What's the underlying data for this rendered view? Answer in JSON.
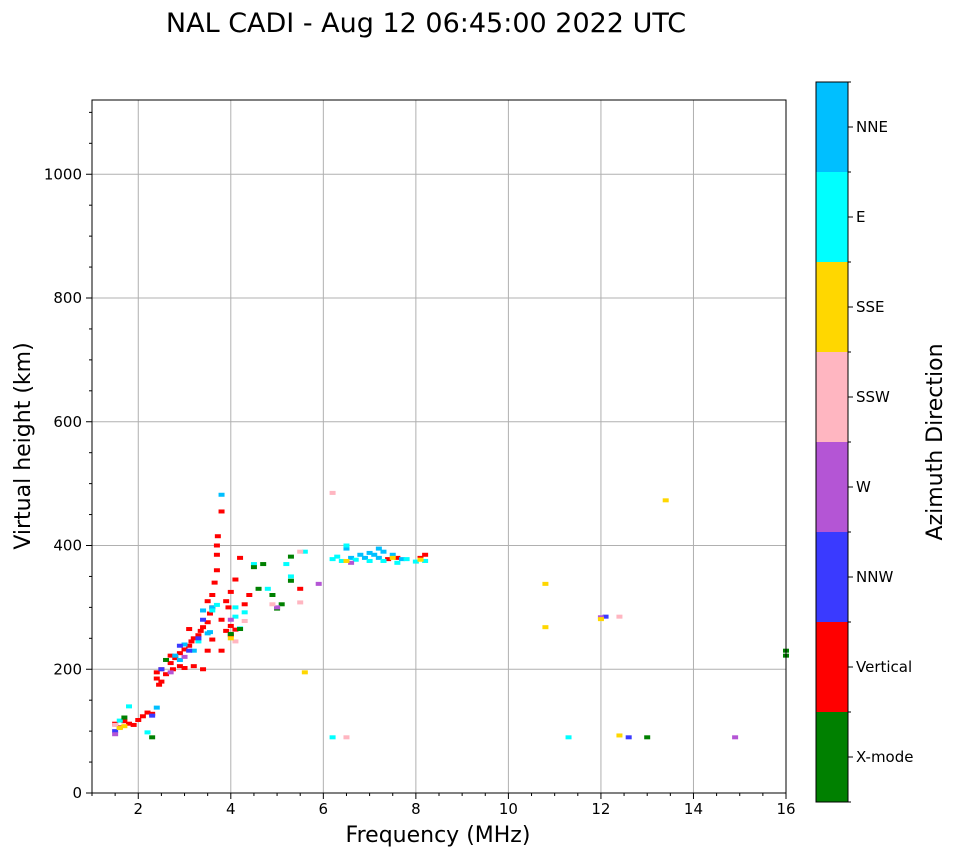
{
  "chart_data": {
    "type": "scatter",
    "title": "NAL CADI - Aug 12 06:45:00 2022 UTC",
    "xlabel": "Frequency (MHz)",
    "ylabel": "Virtual height (km)",
    "xlim": [
      1,
      16
    ],
    "ylim": [
      0,
      1120
    ],
    "xticks": [
      2,
      4,
      6,
      8,
      10,
      12,
      14,
      16
    ],
    "yticks": [
      0,
      200,
      400,
      600,
      800,
      1000
    ],
    "xtick_labels": [
      "2",
      "4",
      "6",
      "8",
      "10",
      "12",
      "14",
      "16"
    ],
    "ytick_labels": [
      "0",
      "200",
      "400",
      "600",
      "800",
      "1000"
    ],
    "grid": true,
    "colorbar": {
      "label": "Azimuth Direction",
      "categories": [
        {
          "name": "X-mode",
          "color": "#008000"
        },
        {
          "name": "Vertical",
          "color": "#ff0000"
        },
        {
          "name": "NNW",
          "color": "#3a3aff"
        },
        {
          "name": "W",
          "color": "#b455d5"
        },
        {
          "name": "SSW",
          "color": "#ffb6c1"
        },
        {
          "name": "SSE",
          "color": "#ffd700"
        },
        {
          "name": "E",
          "color": "#00ffff"
        },
        {
          "name": "NNE",
          "color": "#00bfff"
        }
      ]
    },
    "series": [
      {
        "name": "Vertical",
        "color": "#ff0000",
        "points": [
          [
            1.5,
            112
          ],
          [
            1.6,
            106
          ],
          [
            1.7,
            116
          ],
          [
            1.8,
            112
          ],
          [
            1.9,
            110
          ],
          [
            2.0,
            118
          ],
          [
            2.1,
            124
          ],
          [
            2.2,
            130
          ],
          [
            2.3,
            128
          ],
          [
            2.4,
            185
          ],
          [
            2.4,
            195
          ],
          [
            2.45,
            175
          ],
          [
            2.5,
            200
          ],
          [
            2.5,
            180
          ],
          [
            2.6,
            192
          ],
          [
            2.7,
            210
          ],
          [
            2.7,
            222
          ],
          [
            2.75,
            200
          ],
          [
            2.8,
            218
          ],
          [
            2.9,
            226
          ],
          [
            3.0,
            232
          ],
          [
            3.1,
            238
          ],
          [
            3.15,
            245
          ],
          [
            3.2,
            250
          ],
          [
            3.3,
            255
          ],
          [
            3.35,
            262
          ],
          [
            3.4,
            268
          ],
          [
            3.5,
            276
          ],
          [
            3.5,
            230
          ],
          [
            3.55,
            290
          ],
          [
            3.6,
            300
          ],
          [
            3.6,
            320
          ],
          [
            3.65,
            340
          ],
          [
            3.7,
            360
          ],
          [
            3.7,
            385
          ],
          [
            3.7,
            400
          ],
          [
            3.72,
            415
          ],
          [
            3.8,
            455
          ],
          [
            3.8,
            280
          ],
          [
            3.9,
            310
          ],
          [
            3.95,
            300
          ],
          [
            4.0,
            325
          ],
          [
            4.0,
            270
          ],
          [
            4.1,
            345
          ],
          [
            4.2,
            380
          ],
          [
            3.4,
            200
          ],
          [
            3.2,
            205
          ],
          [
            3.0,
            202
          ],
          [
            3.8,
            230
          ],
          [
            3.6,
            248
          ],
          [
            3.9,
            262
          ],
          [
            4.0,
            255
          ],
          [
            4.1,
            264
          ],
          [
            4.3,
            305
          ],
          [
            4.4,
            320
          ],
          [
            5.5,
            330
          ],
          [
            8.1,
            380
          ],
          [
            8.2,
            385
          ],
          [
            7.6,
            380
          ],
          [
            7.4,
            378
          ],
          [
            3.1,
            265
          ],
          [
            3.5,
            310
          ],
          [
            2.9,
            205
          ]
        ]
      },
      {
        "name": "NNE",
        "color": "#00bfff",
        "points": [
          [
            2.4,
            138
          ],
          [
            2.8,
            222
          ],
          [
            2.9,
            215
          ],
          [
            3.0,
            240
          ],
          [
            3.2,
            230
          ],
          [
            3.4,
            295
          ],
          [
            3.5,
            258
          ],
          [
            3.8,
            482
          ],
          [
            6.6,
            380
          ],
          [
            6.8,
            385
          ],
          [
            6.9,
            380
          ],
          [
            7.0,
            388
          ],
          [
            7.1,
            385
          ],
          [
            7.2,
            380
          ],
          [
            7.3,
            390
          ],
          [
            7.5,
            385
          ],
          [
            7.7,
            378
          ],
          [
            6.5,
            395
          ],
          [
            7.2,
            395
          ],
          [
            3.6,
            300
          ],
          [
            3.55,
            260
          ]
        ]
      },
      {
        "name": "E",
        "color": "#00ffff",
        "points": [
          [
            1.6,
            117
          ],
          [
            1.8,
            140
          ],
          [
            2.2,
            98
          ],
          [
            3.3,
            245
          ],
          [
            3.6,
            295
          ],
          [
            4.1,
            285
          ],
          [
            4.1,
            300
          ],
          [
            4.3,
            292
          ],
          [
            4.5,
            370
          ],
          [
            4.8,
            330
          ],
          [
            5.2,
            370
          ],
          [
            5.3,
            350
          ],
          [
            5.6,
            390
          ],
          [
            6.2,
            378
          ],
          [
            6.3,
            382
          ],
          [
            6.4,
            375
          ],
          [
            6.5,
            400
          ],
          [
            6.7,
            377
          ],
          [
            7.0,
            375
          ],
          [
            7.3,
            375
          ],
          [
            7.6,
            372
          ],
          [
            7.8,
            378
          ],
          [
            8.0,
            374
          ],
          [
            8.2,
            375
          ],
          [
            6.2,
            90
          ],
          [
            11.3,
            90
          ],
          [
            4.2,
            266
          ],
          [
            3.7,
            304
          ]
        ]
      },
      {
        "name": "X-mode",
        "color": "#008000",
        "points": [
          [
            1.7,
            122
          ],
          [
            2.3,
            90
          ],
          [
            4.6,
            330
          ],
          [
            4.7,
            370
          ],
          [
            4.9,
            320
          ],
          [
            5.0,
            298
          ],
          [
            5.1,
            305
          ],
          [
            5.3,
            382
          ],
          [
            5.3,
            343
          ],
          [
            4.5,
            365
          ],
          [
            4.2,
            265
          ],
          [
            4.0,
            257
          ],
          [
            13.0,
            90
          ],
          [
            16.0,
            230
          ],
          [
            16.0,
            222
          ],
          [
            2.6,
            215
          ]
        ]
      },
      {
        "name": "NNW",
        "color": "#3a3aff",
        "points": [
          [
            2.3,
            125
          ],
          [
            2.5,
            200
          ],
          [
            2.9,
            238
          ],
          [
            3.1,
            230
          ],
          [
            3.3,
            250
          ],
          [
            3.4,
            280
          ],
          [
            12.6,
            90
          ],
          [
            12.1,
            285
          ],
          [
            1.5,
            100
          ]
        ]
      },
      {
        "name": "W",
        "color": "#b455d5",
        "points": [
          [
            1.5,
            95
          ],
          [
            2.7,
            195
          ],
          [
            4.0,
            280
          ],
          [
            5.0,
            300
          ],
          [
            5.9,
            338
          ],
          [
            6.6,
            372
          ],
          [
            12.0,
            284
          ],
          [
            14.9,
            90
          ],
          [
            3.0,
            220
          ]
        ]
      },
      {
        "name": "SSW",
        "color": "#ffb6c1",
        "points": [
          [
            1.5,
            110
          ],
          [
            4.1,
            245
          ],
          [
            4.3,
            278
          ],
          [
            5.5,
            390
          ],
          [
            5.5,
            308
          ],
          [
            6.2,
            485
          ],
          [
            6.5,
            90
          ],
          [
            12.4,
            285
          ],
          [
            4.9,
            305
          ]
        ]
      },
      {
        "name": "SSE",
        "color": "#ffd700",
        "points": [
          [
            1.6,
            105
          ],
          [
            1.7,
            108
          ],
          [
            4.0,
            250
          ],
          [
            5.6,
            195
          ],
          [
            6.5,
            375
          ],
          [
            10.8,
            338
          ],
          [
            10.8,
            268
          ],
          [
            12.0,
            281
          ],
          [
            12.4,
            93
          ],
          [
            13.4,
            473
          ],
          [
            7.5,
            380
          ],
          [
            8.1,
            377
          ]
        ]
      }
    ]
  }
}
